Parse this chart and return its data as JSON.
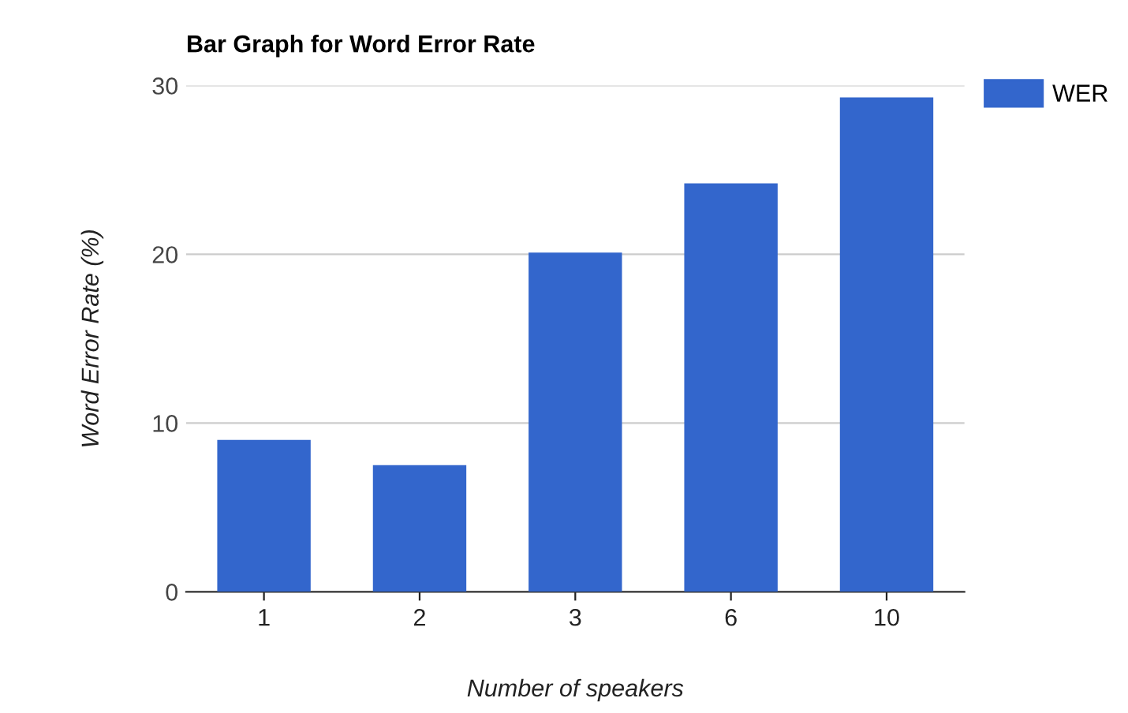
{
  "chart_data": {
    "type": "bar",
    "title": "Bar Graph for Word Error Rate",
    "xlabel": "Number of speakers",
    "ylabel": "Word Error Rate (%)",
    "categories": [
      "1",
      "2",
      "3",
      "6",
      "10"
    ],
    "series": [
      {
        "name": "WER",
        "color": "#3366cc",
        "values": [
          9.0,
          7.5,
          20.1,
          24.2,
          29.3
        ]
      }
    ],
    "ylim": [
      0,
      30
    ],
    "yticks": [
      0,
      10,
      20,
      30
    ],
    "grid": "y",
    "legend": "top right"
  }
}
